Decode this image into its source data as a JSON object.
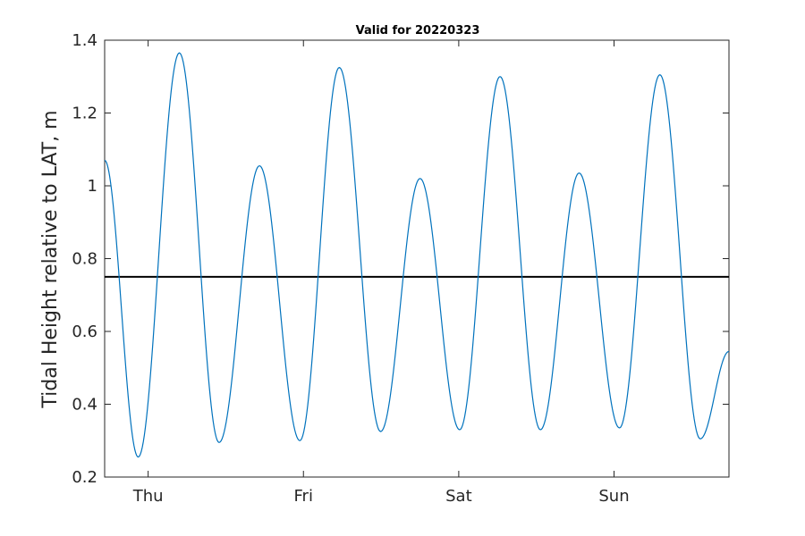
{
  "chart_data": {
    "type": "line",
    "title": "Valid for 20220323",
    "xlabel": "",
    "ylabel": "Tidal Height relative to LAT, m",
    "x_unit": "days from Thursday 00:00",
    "xlim": [
      -0.28,
      3.74
    ],
    "ylim": [
      0.2,
      1.4
    ],
    "yticks": [
      0.2,
      0.4,
      0.6,
      0.8,
      1,
      1.2,
      1.4
    ],
    "ytick_labels": [
      "0.2",
      "0.4",
      "0.6",
      "0.8",
      "1",
      "1.2",
      "1.4"
    ],
    "xticks": [
      0,
      1,
      2,
      3
    ],
    "xtick_labels": [
      "Thu",
      "Fri",
      "Sat",
      "Sun"
    ],
    "grid": false,
    "reference_line": {
      "y": 0.75,
      "color": "#000000"
    },
    "series": [
      {
        "color": "#0072BD",
        "extrema": [
          {
            "x": -0.28,
            "y": 1.07
          },
          {
            "x": -0.064,
            "y": 0.255
          },
          {
            "x": 0.201,
            "y": 1.365
          },
          {
            "x": 0.457,
            "y": 0.295
          },
          {
            "x": 0.717,
            "y": 1.055
          },
          {
            "x": 0.977,
            "y": 0.3
          },
          {
            "x": 1.231,
            "y": 1.325
          },
          {
            "x": 1.497,
            "y": 0.325
          },
          {
            "x": 1.751,
            "y": 1.02
          },
          {
            "x": 2.006,
            "y": 0.33
          },
          {
            "x": 2.266,
            "y": 1.3
          },
          {
            "x": 2.526,
            "y": 0.33
          },
          {
            "x": 2.775,
            "y": 1.035
          },
          {
            "x": 3.035,
            "y": 0.335
          },
          {
            "x": 3.295,
            "y": 1.305
          },
          {
            "x": 3.555,
            "y": 0.305
          },
          {
            "x": 3.74,
            "y": 0.545
          }
        ]
      }
    ]
  }
}
